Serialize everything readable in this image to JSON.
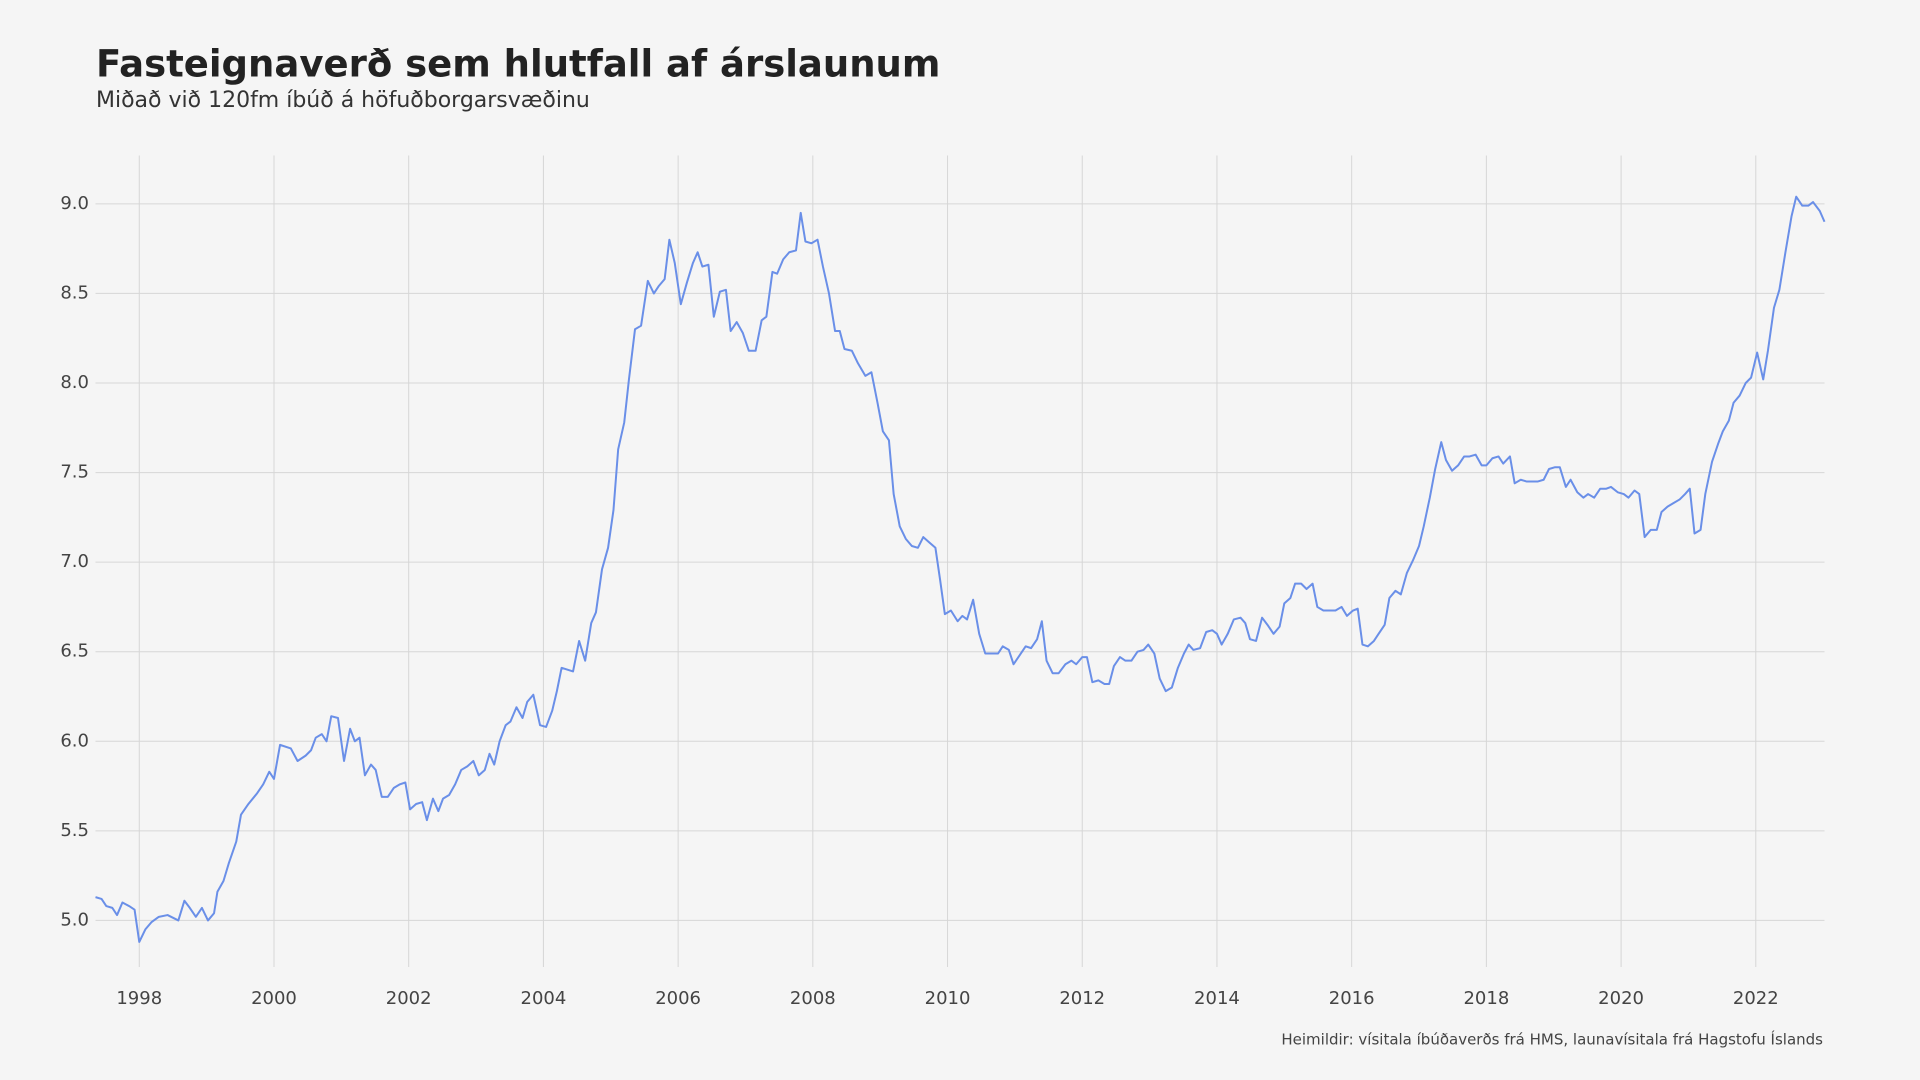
{
  "chart_data": {
    "type": "line",
    "title": "Fasteignaverð sem hlutfall af árslaunum",
    "subtitle": "Miðað við 120fm íbúð á höfuðborgarsvæðinu",
    "caption": "Heimildir: vísitala íbúðaverðs frá HMS, launavísitala frá Hagstofu Íslands",
    "color": "#6a8fe8",
    "grid": true,
    "xlim": [
      1997.35,
      2023.02
    ],
    "ylim": [
      4.74,
      9.27
    ],
    "xticks": [
      1998,
      2000,
      2002,
      2004,
      2006,
      2008,
      2010,
      2012,
      2014,
      2016,
      2018,
      2020,
      2022
    ],
    "yticks": [
      {
        "value": 5,
        "label": "5.0"
      },
      5.5,
      {
        "value": 6,
        "label": "6.0"
      },
      6.5,
      {
        "value": 7,
        "label": "7.0"
      },
      7.5,
      {
        "value": 8,
        "label": "8.0"
      },
      8.5,
      {
        "value": 9,
        "label": "9.0"
      }
    ],
    "x": [
      1997.35,
      1997.44,
      1997.51,
      1997.6,
      1997.67,
      1997.75,
      1997.85,
      1997.93,
      1998.0,
      1998.09,
      1998.18,
      1998.29,
      1998.42,
      1998.58,
      1998.67,
      1998.75,
      1998.84,
      1998.93,
      1999.02,
      1999.11,
      1999.16,
      1999.25,
      1999.33,
      1999.44,
      1999.51,
      1999.62,
      1999.75,
      1999.84,
      1999.93,
      2000.0,
      2000.09,
      2000.25,
      2000.35,
      2000.47,
      2000.55,
      2000.62,
      2000.71,
      2000.78,
      2000.85,
      2000.95,
      2001.04,
      2001.13,
      2001.2,
      2001.27,
      2001.35,
      2001.44,
      2001.51,
      2001.6,
      2001.69,
      2001.78,
      2001.87,
      2001.95,
      2002.02,
      2002.11,
      2002.2,
      2002.27,
      2002.36,
      2002.44,
      2002.51,
      2002.6,
      2002.69,
      2002.78,
      2002.87,
      2002.96,
      2003.04,
      2003.13,
      2003.2,
      2003.27,
      2003.35,
      2003.44,
      2003.51,
      2003.6,
      2003.69,
      2003.76,
      2003.85,
      2003.95,
      2004.04,
      2004.13,
      2004.2,
      2004.27,
      2004.44,
      2004.53,
      2004.62,
      2004.71,
      2004.78,
      2004.87,
      2004.96,
      2005.04,
      2005.11,
      2005.2,
      2005.27,
      2005.36,
      2005.45,
      2005.55,
      2005.64,
      2005.71,
      2005.8,
      2005.87,
      2005.95,
      2006.04,
      2006.13,
      2006.22,
      2006.29,
      2006.36,
      2006.45,
      2006.53,
      2006.62,
      2006.71,
      2006.78,
      2006.87,
      2006.96,
      2007.05,
      2007.15,
      2007.24,
      2007.31,
      2007.4,
      2007.47,
      2007.56,
      2007.65,
      2007.75,
      2007.82,
      2007.89,
      2007.98,
      2008.07,
      2008.15,
      2008.24,
      2008.33,
      2008.4,
      2008.47,
      2008.58,
      2008.67,
      2008.78,
      2008.87,
      2008.96,
      2009.04,
      2009.13,
      2009.2,
      2009.29,
      2009.38,
      2009.47,
      2009.56,
      2009.64,
      2009.73,
      2009.82,
      2009.89,
      2009.96,
      2010.05,
      2010.15,
      2010.22,
      2010.29,
      2010.38,
      2010.47,
      2010.56,
      2010.65,
      2010.75,
      2010.82,
      2010.91,
      2010.98,
      2011.07,
      2011.16,
      2011.24,
      2011.33,
      2011.4,
      2011.47,
      2011.56,
      2011.65,
      2011.75,
      2011.84,
      2011.91,
      2012.0,
      2012.07,
      2012.15,
      2012.24,
      2012.33,
      2012.4,
      2012.47,
      2012.56,
      2012.64,
      2012.73,
      2012.82,
      2012.91,
      2012.98,
      2013.07,
      2013.15,
      2013.24,
      2013.33,
      2013.42,
      2013.51,
      2013.58,
      2013.65,
      2013.75,
      2013.84,
      2013.93,
      2014.0,
      2014.07,
      2014.16,
      2014.25,
      2014.35,
      2014.42,
      2014.49,
      2014.58,
      2014.67,
      2014.75,
      2014.84,
      2014.93,
      2015.0,
      2015.09,
      2015.16,
      2015.25,
      2015.33,
      2015.42,
      2015.49,
      2015.58,
      2015.67,
      2015.76,
      2015.85,
      2015.93,
      2016.02,
      2016.09,
      2016.16,
      2016.24,
      2016.33,
      2016.4,
      2016.49,
      2016.56,
      2016.65,
      2016.73,
      2016.82,
      2016.91,
      2017.0,
      2017.07,
      2017.16,
      2017.24,
      2017.33,
      2017.4,
      2017.49,
      2017.58,
      2017.67,
      2017.75,
      2017.84,
      2017.93,
      2018.0,
      2018.09,
      2018.18,
      2018.25,
      2018.35,
      2018.42,
      2018.51,
      2018.6,
      2018.76,
      2018.85,
      2018.93,
      2019.02,
      2019.09,
      2019.18,
      2019.25,
      2019.35,
      2019.44,
      2019.51,
      2019.6,
      2019.69,
      2019.78,
      2019.85,
      2019.95,
      2020.04,
      2020.11,
      2020.2,
      2020.27,
      2020.35,
      2020.44,
      2020.53,
      2020.6,
      2020.69,
      2020.78,
      2020.87,
      2020.95,
      2021.02,
      2021.09,
      2021.18,
      2021.25,
      2021.35,
      2021.44,
      2021.51,
      2021.6,
      2021.67,
      2021.76,
      2021.85,
      2021.93,
      2022.02,
      2022.11,
      2022.18,
      2022.27,
      2022.35,
      2022.44,
      2022.53,
      2022.6,
      2022.69,
      2022.78,
      2022.85,
      2022.95,
      2023.02
    ],
    "values": [
      5.13,
      5.12,
      5.08,
      5.07,
      5.03,
      5.1,
      5.08,
      5.06,
      4.88,
      4.95,
      4.99,
      5.02,
      5.03,
      5.0,
      5.11,
      5.07,
      5.02,
      5.07,
      5.0,
      5.04,
      5.16,
      5.22,
      5.32,
      5.44,
      5.59,
      5.65,
      5.71,
      5.76,
      5.83,
      5.79,
      5.98,
      5.96,
      5.89,
      5.92,
      5.95,
      6.02,
      6.04,
      6.0,
      6.14,
      6.13,
      5.89,
      6.07,
      6.0,
      6.02,
      5.81,
      5.87,
      5.84,
      5.69,
      5.69,
      5.74,
      5.76,
      5.77,
      5.62,
      5.65,
      5.66,
      5.56,
      5.68,
      5.61,
      5.68,
      5.7,
      5.76,
      5.84,
      5.86,
      5.89,
      5.81,
      5.84,
      5.93,
      5.87,
      6.0,
      6.09,
      6.11,
      6.19,
      6.13,
      6.22,
      6.26,
      6.09,
      6.08,
      6.17,
      6.28,
      6.41,
      6.39,
      6.56,
      6.45,
      6.66,
      6.72,
      6.96,
      7.08,
      7.29,
      7.63,
      7.78,
      8.02,
      8.3,
      8.32,
      8.57,
      8.5,
      8.54,
      8.58,
      8.8,
      8.67,
      8.44,
      8.56,
      8.67,
      8.73,
      8.65,
      8.66,
      8.37,
      8.51,
      8.52,
      8.29,
      8.34,
      8.28,
      8.18,
      8.18,
      8.35,
      8.37,
      8.62,
      8.61,
      8.69,
      8.73,
      8.74,
      8.95,
      8.79,
      8.78,
      8.8,
      8.65,
      8.5,
      8.29,
      8.29,
      8.19,
      8.18,
      8.11,
      8.04,
      8.06,
      7.89,
      7.73,
      7.68,
      7.38,
      7.2,
      7.13,
      7.09,
      7.08,
      7.14,
      7.11,
      7.08,
      6.9,
      6.71,
      6.73,
      6.67,
      6.7,
      6.68,
      6.79,
      6.6,
      6.49,
      6.49,
      6.49,
      6.53,
      6.51,
      6.43,
      6.48,
      6.53,
      6.52,
      6.57,
      6.67,
      6.45,
      6.38,
      6.38,
      6.43,
      6.45,
      6.43,
      6.47,
      6.47,
      6.33,
      6.34,
      6.32,
      6.32,
      6.42,
      6.47,
      6.45,
      6.45,
      6.5,
      6.51,
      6.54,
      6.49,
      6.35,
      6.28,
      6.3,
      6.41,
      6.49,
      6.54,
      6.51,
      6.52,
      6.61,
      6.62,
      6.6,
      6.54,
      6.6,
      6.68,
      6.69,
      6.66,
      6.57,
      6.56,
      6.69,
      6.65,
      6.6,
      6.64,
      6.77,
      6.8,
      6.88,
      6.88,
      6.85,
      6.88,
      6.75,
      6.73,
      6.73,
      6.73,
      6.75,
      6.7,
      6.73,
      6.74,
      6.54,
      6.53,
      6.56,
      6.6,
      6.65,
      6.8,
      6.84,
      6.82,
      6.94,
      7.01,
      7.09,
      7.2,
      7.36,
      7.52,
      7.67,
      7.57,
      7.51,
      7.54,
      7.59,
      7.59,
      7.6,
      7.54,
      7.54,
      7.58,
      7.59,
      7.55,
      7.59,
      7.44,
      7.46,
      7.45,
      7.45,
      7.46,
      7.52,
      7.53,
      7.53,
      7.42,
      7.46,
      7.39,
      7.36,
      7.38,
      7.36,
      7.41,
      7.41,
      7.42,
      7.39,
      7.38,
      7.36,
      7.4,
      7.38,
      7.14,
      7.18,
      7.18,
      7.28,
      7.31,
      7.33,
      7.35,
      7.38,
      7.41,
      7.16,
      7.18,
      7.38,
      7.56,
      7.66,
      7.73,
      7.79,
      7.89,
      7.93,
      8.0,
      8.03,
      8.17,
      8.02,
      8.18,
      8.42,
      8.52,
      8.73,
      8.93,
      9.04,
      8.99,
      8.99,
      9.01,
      8.96,
      8.9
    ]
  }
}
